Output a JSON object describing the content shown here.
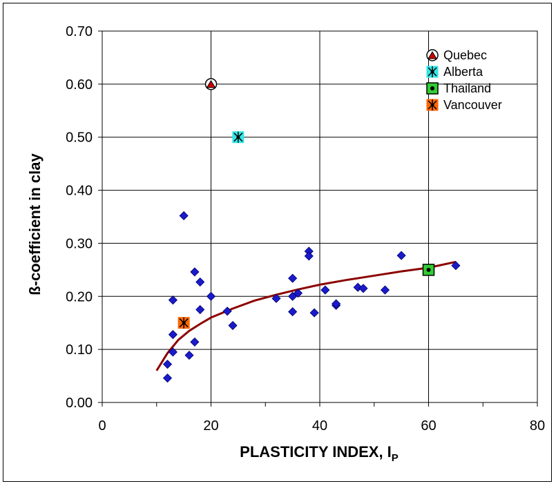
{
  "chart_data": {
    "type": "scatter",
    "title": "",
    "xlabel": "PLASTICITY INDEX,  I",
    "xlabel_subscript": "P",
    "ylabel": "ß-coefficient  in  clay",
    "xlim": [
      0,
      80
    ],
    "ylim": [
      0,
      0.7
    ],
    "x_ticks": [
      "0",
      "20",
      "40",
      "60",
      "80"
    ],
    "y_ticks": [
      "0.00",
      "0.10",
      "0.20",
      "0.30",
      "0.40",
      "0.50",
      "0.60",
      "0.70"
    ],
    "grid": "major",
    "legend_position": "top-right",
    "series": [
      {
        "name": "",
        "marker": "diamond",
        "color": "#1a1acc",
        "points": [
          [
            12,
            0.046
          ],
          [
            12,
            0.072
          ],
          [
            13,
            0.095
          ],
          [
            13,
            0.128
          ],
          [
            13,
            0.193
          ],
          [
            15,
            0.352
          ],
          [
            16,
            0.089
          ],
          [
            17,
            0.114
          ],
          [
            17,
            0.246
          ],
          [
            18,
            0.175
          ],
          [
            18,
            0.227
          ],
          [
            20,
            0.2
          ],
          [
            23,
            0.172
          ],
          [
            24,
            0.145
          ],
          [
            32,
            0.196
          ],
          [
            35,
            0.171
          ],
          [
            35,
            0.2
          ],
          [
            35,
            0.234
          ],
          [
            36,
            0.206
          ],
          [
            38,
            0.285
          ],
          [
            38,
            0.276
          ],
          [
            39,
            0.169
          ],
          [
            41,
            0.212
          ],
          [
            43,
            0.183
          ],
          [
            43,
            0.186
          ],
          [
            47,
            0.217
          ],
          [
            48,
            0.215
          ],
          [
            52,
            0.212
          ],
          [
            55,
            0.277
          ],
          [
            65,
            0.258
          ]
        ]
      },
      {
        "name": "Quebec",
        "marker": "circle-triangle",
        "color": "#cc0000",
        "points": [
          [
            20,
            0.6
          ]
        ]
      },
      {
        "name": "Alberta",
        "marker": "square-star",
        "color": "#33e6e6",
        "points": [
          [
            25,
            0.5
          ]
        ]
      },
      {
        "name": "Thailand",
        "marker": "square-dot",
        "color": "#33cc33",
        "points": [
          [
            60,
            0.25
          ]
        ]
      },
      {
        "name": "Vancouver",
        "marker": "square-star",
        "color": "#ff6600",
        "points": [
          [
            15,
            0.15
          ]
        ]
      }
    ],
    "trend_line": {
      "color": "#8b0000",
      "points": [
        [
          10,
          0.06
        ],
        [
          12,
          0.093
        ],
        [
          14,
          0.118
        ],
        [
          16,
          0.135
        ],
        [
          18,
          0.148
        ],
        [
          20,
          0.16
        ],
        [
          24,
          0.177
        ],
        [
          28,
          0.192
        ],
        [
          32,
          0.203
        ],
        [
          36,
          0.213
        ],
        [
          40,
          0.222
        ],
        [
          45,
          0.231
        ],
        [
          50,
          0.239
        ],
        [
          55,
          0.247
        ],
        [
          60,
          0.254
        ],
        [
          65,
          0.265
        ]
      ]
    }
  }
}
